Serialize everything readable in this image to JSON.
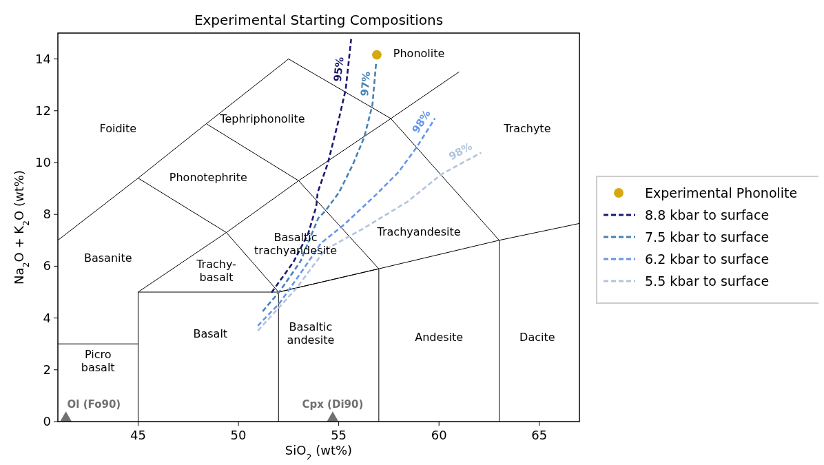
{
  "chart_data": {
    "type": "line",
    "title": "Experimental Starting Compositions",
    "xlabel": "SiO$_{2}$ (wt%)",
    "ylabel": "Na$_{2}$O + K$_{2}$O (wt%)",
    "xlim": [
      41,
      67
    ],
    "ylim": [
      0,
      15
    ],
    "xticks": [
      45,
      50,
      55,
      60,
      65
    ],
    "yticks": [
      0,
      2,
      4,
      6,
      8,
      10,
      12,
      14
    ],
    "grid": false,
    "legend": "right",
    "series": [
      {
        "color": "#000000",
        "x": [
          41,
          45
        ],
        "values": [
          3,
          3
        ]
      },
      {
        "color": "#000000",
        "x": [
          45,
          45,
          52,
          52
        ],
        "values": [
          0,
          5,
          5,
          0
        ]
      },
      {
        "color": "#000000",
        "x": [
          57,
          57
        ],
        "values": [
          0,
          5.9
        ]
      },
      {
        "color": "#000000",
        "x": [
          63,
          63
        ],
        "values": [
          0,
          7
        ]
      },
      {
        "color": "#000000",
        "x": [
          52,
          57,
          63,
          67
        ],
        "values": [
          5,
          5.9,
          7,
          7.65
        ]
      },
      {
        "color": "#000000",
        "x": [
          45,
          49.4,
          53,
          57.6,
          61
        ],
        "values": [
          5,
          7.3,
          9.3,
          11.7,
          13.5
        ]
      },
      {
        "color": "#000000",
        "x": [
          41,
          45,
          48.4,
          52.5,
          57.6,
          63,
          63
        ],
        "values": [
          7,
          9.4,
          11.5,
          14,
          11.7,
          7,
          7
        ]
      },
      {
        "color": "#000000",
        "x": [
          45,
          49.4,
          52,
          57,
          53,
          48.4
        ],
        "values": [
          9.4,
          7.3,
          5,
          5.9,
          9.3,
          11.5
        ]
      },
      {
        "type": "scatter",
        "name": "Experimental Phonolite",
        "color": "#d4a90f",
        "marker": "circle",
        "x": [
          56.9
        ],
        "values": [
          14.16
        ]
      },
      {
        "name": "8.8 kbar to surface",
        "color": "#191970",
        "line_style": "dashed",
        "x": [
          51.65,
          52.75,
          53.47,
          53.88,
          53.95,
          54.46,
          55.01,
          55.35,
          55.62
        ],
        "values": [
          4.98,
          6.17,
          7.24,
          8.3,
          8.84,
          9.98,
          11.68,
          12.83,
          14.77
        ]
      },
      {
        "name": "7.5 kbar to surface",
        "color": "#4682b4",
        "line_style": "dashed",
        "x": [
          51.21,
          52.06,
          53.09,
          53.98,
          54.32,
          55.01,
          55.69,
          56.27,
          56.68,
          56.86
        ],
        "values": [
          4.26,
          5.03,
          6.18,
          7.85,
          8.12,
          8.84,
          9.9,
          10.97,
          12.22,
          13.81
        ]
      },
      {
        "name": "6.2 kbar to surface",
        "color": "#6495ed",
        "line_style": "dashed",
        "x": [
          50.97,
          52.06,
          53.19,
          54.12,
          55.25,
          56.86,
          57.99,
          58.91,
          59.8
        ],
        "values": [
          3.7,
          4.58,
          5.83,
          6.89,
          7.59,
          8.76,
          9.64,
          10.62,
          11.71
        ]
      },
      {
        "name": "5.5 kbar to surface",
        "color": "#b0c4de",
        "line_style": "dashed",
        "x": [
          50.97,
          52.85,
          54.32,
          56.17,
          58.43,
          60.14,
          62.1
        ],
        "values": [
          3.51,
          5.11,
          6.63,
          7.43,
          8.49,
          9.56,
          10.38
        ]
      },
      {
        "type": "scatter",
        "color": "#707070",
        "marker": "triangle",
        "x": [
          41.4,
          54.7
        ],
        "values": [
          0,
          0
        ]
      }
    ],
    "annotations": [
      "Foidite",
      "Tephriphonolite",
      "Phonotephrite",
      "Basanite",
      "Trachy-\nbasalt",
      "Basaltic\ntrachyandesite",
      "Trachyandesite",
      "Trachyte",
      "Basalt",
      "Basaltic\nandesite",
      "Andesite",
      "Dacite",
      "Picro\nbasalt",
      "Phonolite",
      "Ol (Fo90)",
      "Cpx (Di90)",
      "95%",
      "97%",
      "98%",
      "98%"
    ]
  }
}
